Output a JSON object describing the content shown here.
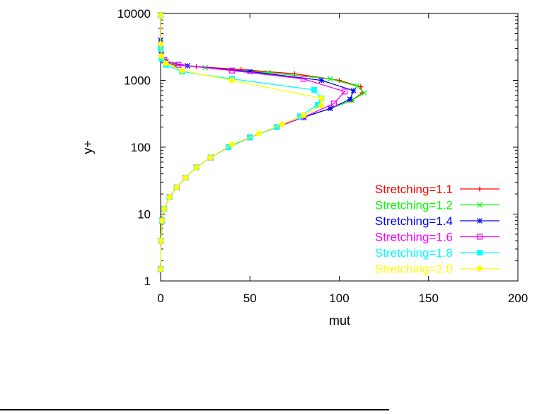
{
  "chart_data": {
    "type": "line",
    "title": "",
    "xlabel": "mut",
    "ylabel": "y+",
    "xlim": [
      0,
      200
    ],
    "ylim": [
      1,
      10000
    ],
    "yscale": "log",
    "xticks": [
      "0",
      "50",
      "100",
      "150",
      "200"
    ],
    "yticks": [
      "1",
      "10",
      "100",
      "1000",
      "10000"
    ],
    "grid": false,
    "legend_position": "bottom-right",
    "series": [
      {
        "name": "Stretching=1.1",
        "color": "#ff0000",
        "marker": "plus",
        "points": [
          [
            0,
            1.5
          ],
          [
            0.2,
            4
          ],
          [
            0.8,
            8
          ],
          [
            2,
            12
          ],
          [
            5,
            18
          ],
          [
            9,
            25
          ],
          [
            14,
            35
          ],
          [
            20,
            50
          ],
          [
            28,
            70
          ],
          [
            38,
            100
          ],
          [
            50,
            140
          ],
          [
            65,
            200
          ],
          [
            80,
            280
          ],
          [
            95,
            380
          ],
          [
            107,
            500
          ],
          [
            113,
            650
          ],
          [
            112,
            800
          ],
          [
            100,
            1000
          ],
          [
            75,
            1250
          ],
          [
            45,
            1450
          ],
          [
            20,
            1600
          ],
          [
            8,
            1700
          ],
          [
            2,
            1850
          ],
          [
            0.5,
            2300
          ],
          [
            0.1,
            3500
          ],
          [
            0,
            6000
          ],
          [
            0,
            9500
          ]
        ]
      },
      {
        "name": "Stretching=1.2",
        "color": "#00ff00",
        "marker": "x",
        "points": [
          [
            0,
            1.5
          ],
          [
            0.2,
            4
          ],
          [
            0.8,
            8
          ],
          [
            2,
            12
          ],
          [
            5,
            18
          ],
          [
            9,
            25
          ],
          [
            14,
            35
          ],
          [
            20,
            50
          ],
          [
            28,
            70
          ],
          [
            38,
            100
          ],
          [
            50,
            140
          ],
          [
            65,
            200
          ],
          [
            80,
            280
          ],
          [
            95,
            380
          ],
          [
            107,
            500
          ],
          [
            114,
            650
          ],
          [
            110,
            820
          ],
          [
            95,
            1050
          ],
          [
            60,
            1300
          ],
          [
            25,
            1550
          ],
          [
            8,
            1750
          ],
          [
            2,
            1950
          ],
          [
            0.3,
            2500
          ],
          [
            0,
            4000
          ],
          [
            0,
            9500
          ]
        ]
      },
      {
        "name": "Stretching=1.4",
        "color": "#0000ff",
        "marker": "star",
        "points": [
          [
            0,
            1.5
          ],
          [
            0.2,
            4
          ],
          [
            0.8,
            8
          ],
          [
            2,
            12
          ],
          [
            5,
            18
          ],
          [
            9,
            25
          ],
          [
            14,
            35
          ],
          [
            20,
            50
          ],
          [
            28,
            70
          ],
          [
            38,
            100
          ],
          [
            50,
            140
          ],
          [
            65,
            200
          ],
          [
            80,
            280
          ],
          [
            95,
            380
          ],
          [
            106,
            520
          ],
          [
            108,
            700
          ],
          [
            90,
            1000
          ],
          [
            50,
            1350
          ],
          [
            15,
            1650
          ],
          [
            3,
            1900
          ],
          [
            0.5,
            2400
          ],
          [
            0,
            4000
          ],
          [
            0,
            9500
          ]
        ]
      },
      {
        "name": "Stretching=1.6",
        "color": "#ff00ff",
        "marker": "square",
        "points": [
          [
            0,
            1.5
          ],
          [
            0.2,
            4
          ],
          [
            0.8,
            8
          ],
          [
            2,
            12
          ],
          [
            5,
            18
          ],
          [
            9,
            25
          ],
          [
            14,
            35
          ],
          [
            20,
            50
          ],
          [
            28,
            70
          ],
          [
            38,
            100
          ],
          [
            50,
            140
          ],
          [
            65,
            200
          ],
          [
            80,
            280
          ],
          [
            97,
            450
          ],
          [
            103,
            680
          ],
          [
            80,
            1050
          ],
          [
            40,
            1400
          ],
          [
            10,
            1700
          ],
          [
            2,
            2000
          ],
          [
            0,
            3000
          ],
          [
            0,
            9500
          ]
        ]
      },
      {
        "name": "Stretching=1.8",
        "color": "#00ffff",
        "marker": "filled-square",
        "points": [
          [
            0,
            1.5
          ],
          [
            0.2,
            4
          ],
          [
            0.8,
            8
          ],
          [
            2,
            12
          ],
          [
            5,
            18
          ],
          [
            9,
            25
          ],
          [
            14,
            35
          ],
          [
            20,
            50
          ],
          [
            28,
            70
          ],
          [
            38,
            100
          ],
          [
            50,
            140
          ],
          [
            65,
            200
          ],
          [
            78,
            290
          ],
          [
            88,
            430
          ],
          [
            90,
            540
          ],
          [
            86,
            720
          ],
          [
            40,
            1050
          ],
          [
            12,
            1350
          ],
          [
            3,
            1700
          ],
          [
            0.5,
            2100
          ],
          [
            0,
            3000
          ],
          [
            0,
            9500
          ]
        ]
      },
      {
        "name": "Stretching=2.0",
        "color": "#ffff00",
        "marker": "filled-circle",
        "points": [
          [
            0,
            1.5
          ],
          [
            0.2,
            4
          ],
          [
            0.8,
            8
          ],
          [
            2,
            12
          ],
          [
            5,
            18
          ],
          [
            9,
            25
          ],
          [
            14,
            35
          ],
          [
            20,
            50
          ],
          [
            28,
            70
          ],
          [
            40,
            110
          ],
          [
            55,
            160
          ],
          [
            68,
            220
          ],
          [
            80,
            300
          ],
          [
            90,
            420
          ],
          [
            90,
            540
          ],
          [
            40,
            1000
          ],
          [
            12,
            1400
          ],
          [
            3,
            1800
          ],
          [
            0.5,
            2300
          ],
          [
            0,
            3500
          ],
          [
            0,
            9500
          ]
        ]
      }
    ]
  }
}
